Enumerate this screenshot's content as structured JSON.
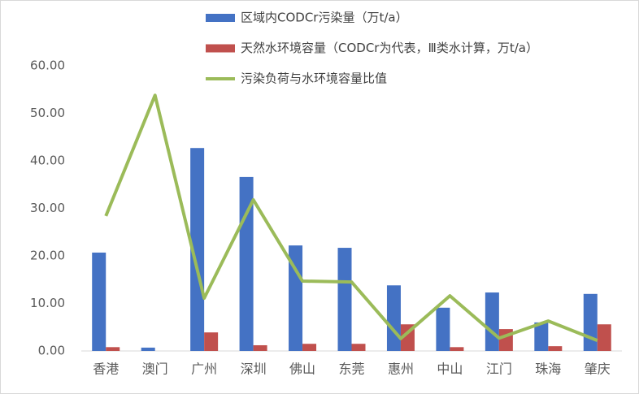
{
  "chart_data": {
    "type": "bar-line",
    "categories": [
      "香港",
      "澳门",
      "广州",
      "深圳",
      "佛山",
      "东莞",
      "惠州",
      "中山",
      "江门",
      "珠海",
      "肇庆"
    ],
    "series": [
      {
        "name": "区域内CODCr污染量（万t/a）",
        "type": "bar",
        "color": "#4472c4",
        "values": [
          20.7,
          0.7,
          42.7,
          36.6,
          22.2,
          21.7,
          13.8,
          9.1,
          12.3,
          6.0,
          12.0
        ]
      },
      {
        "name": "天然水环境容量（CODCr为代表，Ⅲ类水计算，万t/a）",
        "type": "bar",
        "color": "#c0504d",
        "values": [
          0.8,
          0,
          3.9,
          1.2,
          1.5,
          1.5,
          5.6,
          0.8,
          4.6,
          1.0,
          5.6
        ]
      },
      {
        "name": "污染负荷与水环境容量比值",
        "type": "line",
        "color": "#9bbb59",
        "values": [
          28.4,
          53.8,
          11.1,
          31.8,
          14.7,
          14.5,
          2.6,
          11.6,
          2.7,
          6.3,
          2.2
        ]
      }
    ],
    "ylim": [
      0,
      60
    ],
    "yticks": [
      {
        "value": 0,
        "label": "0.00"
      },
      {
        "value": 10,
        "label": "10.00"
      },
      {
        "value": 20,
        "label": "20.00"
      },
      {
        "value": 30,
        "label": "30.00"
      },
      {
        "value": 40,
        "label": "40.00"
      },
      {
        "value": 50,
        "label": "50.00"
      },
      {
        "value": 60,
        "label": "60.00"
      }
    ],
    "grid": false
  }
}
